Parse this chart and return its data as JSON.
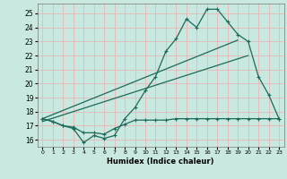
{
  "xlabel": "Humidex (Indice chaleur)",
  "bg_color": "#c8e8e0",
  "grid_color": "#e8b8b8",
  "line_color": "#1a6b5a",
  "xlim": [
    -0.5,
    23.5
  ],
  "ylim": [
    15.5,
    25.7
  ],
  "xticks": [
    0,
    1,
    2,
    3,
    4,
    5,
    6,
    7,
    8,
    9,
    10,
    11,
    12,
    13,
    14,
    15,
    16,
    17,
    18,
    19,
    20,
    21,
    22,
    23
  ],
  "yticks": [
    16,
    17,
    18,
    19,
    20,
    21,
    22,
    23,
    24,
    25
  ],
  "curve_x": [
    0,
    1,
    2,
    3,
    4,
    5,
    6,
    7,
    8,
    9,
    10,
    11,
    12,
    13,
    14,
    15,
    16,
    17,
    18,
    19,
    20,
    21,
    22,
    23
  ],
  "curve_y": [
    17.5,
    17.3,
    17.0,
    16.8,
    15.8,
    16.3,
    16.1,
    16.3,
    17.5,
    18.3,
    19.5,
    20.5,
    22.3,
    23.2,
    24.6,
    24.0,
    25.3,
    25.3,
    24.4,
    23.5,
    23.0,
    20.5,
    19.2,
    17.5
  ],
  "flat_x": [
    0,
    1,
    2,
    3,
    4,
    5,
    6,
    7,
    8,
    9,
    10,
    11,
    12,
    13,
    14,
    15,
    16,
    17,
    18,
    19,
    20,
    21,
    22,
    23
  ],
  "flat_y": [
    17.5,
    17.3,
    17.0,
    16.9,
    16.5,
    16.5,
    16.4,
    16.8,
    17.1,
    17.4,
    17.4,
    17.4,
    17.4,
    17.5,
    17.5,
    17.5,
    17.5,
    17.5,
    17.5,
    17.5,
    17.5,
    17.5,
    17.5,
    17.5
  ],
  "trend1_x": [
    0,
    19
  ],
  "trend1_y": [
    17.5,
    23.1
  ],
  "trend2_x": [
    0,
    20
  ],
  "trend2_y": [
    17.3,
    22.0
  ]
}
